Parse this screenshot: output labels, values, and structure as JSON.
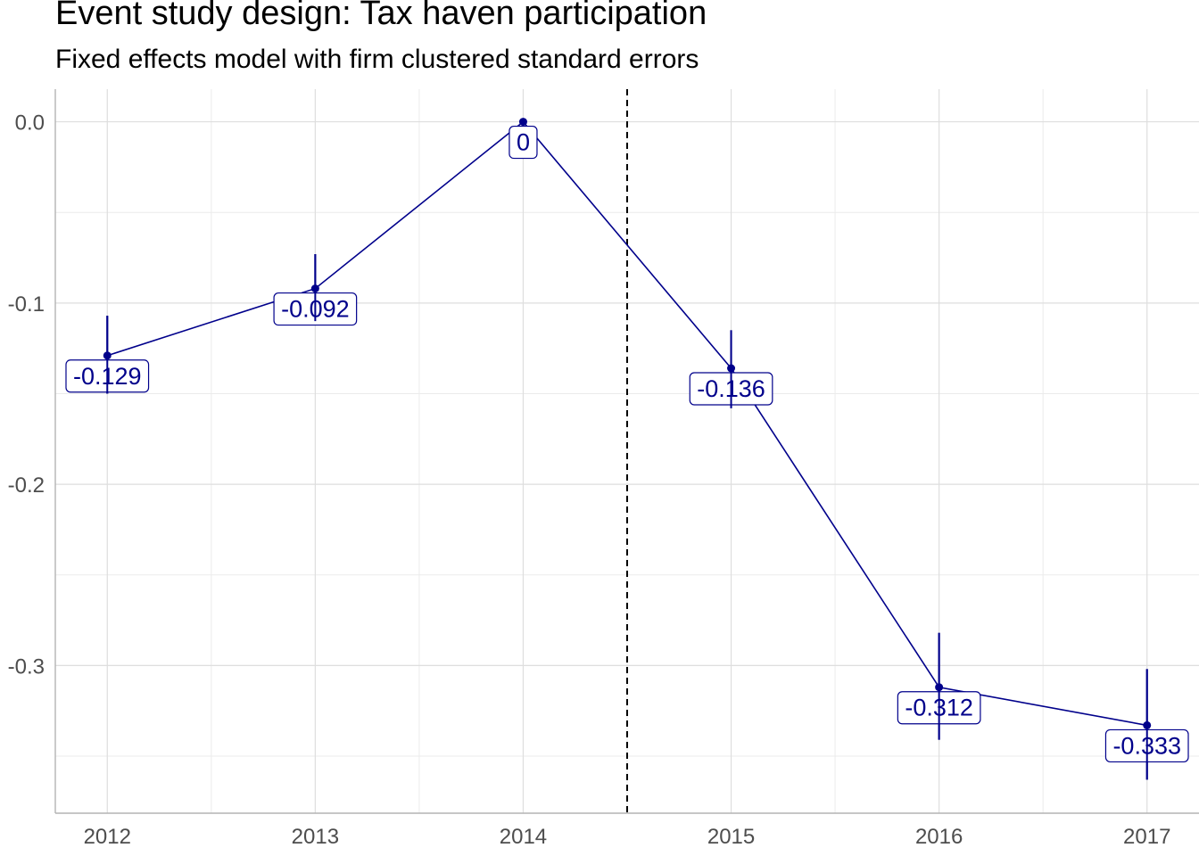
{
  "chart_data": {
    "type": "line",
    "title": "Event study design: Tax haven participation",
    "subtitle": "Fixed effects model with firm clustered standard errors",
    "xlabel": "",
    "ylabel": "",
    "x": [
      "2012",
      "2013",
      "2014",
      "2015",
      "2016",
      "2017"
    ],
    "series": [
      {
        "values": [
          -0.129,
          -0.092,
          0,
          -0.136,
          -0.312,
          -0.333
        ],
        "labels": [
          "-0.129",
          "-0.092",
          "0",
          "-0.136",
          "-0.312",
          "-0.333"
        ],
        "ci_low": [
          -0.15,
          -0.11,
          0,
          -0.158,
          -0.341,
          -0.363
        ],
        "ci_high": [
          -0.107,
          -0.073,
          0,
          -0.115,
          -0.282,
          -0.302
        ],
        "color": "#00008b"
      }
    ],
    "yticks": [
      0.0,
      -0.1,
      -0.2,
      -0.3
    ],
    "ytick_labels": [
      "0.0",
      "-0.1",
      "-0.2",
      "-0.3"
    ],
    "ylim": [
      -0.3815,
      0.018
    ],
    "xlim": [
      2011.75,
      2017.25
    ],
    "vline": {
      "x": 2014.5,
      "style": "dashed",
      "color": "#000000"
    },
    "grid": true,
    "legend": "none"
  }
}
